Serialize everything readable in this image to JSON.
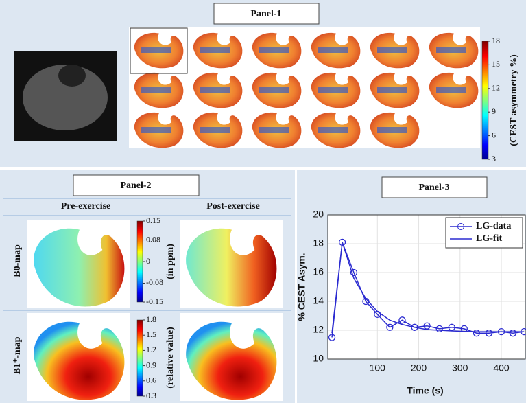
{
  "panel_1": {
    "title": "Panel-1",
    "colorbar": {
      "label": "(CEST asymmetry %)",
      "lim": [
        3,
        18
      ],
      "ticks": [
        3,
        6,
        9,
        12,
        15,
        18
      ]
    }
  },
  "panel_2": {
    "title": "Panel-2",
    "columns": [
      "Pre-exercise",
      "Post-exercise"
    ],
    "rows": [
      "B0-map",
      "B1⁺-map"
    ],
    "b0_colorbar": {
      "label": "(in ppm)",
      "lim": [
        -0.15,
        0.15
      ],
      "ticks": [
        -0.15,
        -0.08,
        0,
        0.08,
        0.15
      ]
    },
    "b1_colorbar": {
      "label": "(relative value)",
      "lim": [
        0.3,
        1.8
      ],
      "ticks": [
        0.3,
        0.6,
        0.9,
        1.2,
        1.5,
        1.8
      ]
    }
  },
  "chart_data": {
    "type": "line",
    "title": "Panel-3",
    "x_label": "Time (s)",
    "y_label": "% CEST Asym.",
    "x": [
      -10,
      15,
      43,
      72,
      100,
      130,
      160,
      190,
      220,
      250,
      280,
      310,
      340,
      370,
      400,
      428,
      455
    ],
    "series": [
      {
        "name": "LG-data",
        "color": "#2b2bd0",
        "markers": true,
        "values": [
          11.5,
          18.1,
          16.0,
          14.0,
          13.1,
          12.2,
          12.7,
          12.2,
          12.3,
          12.1,
          12.2,
          12.1,
          11.8,
          11.8,
          11.9,
          11.8,
          11.9
        ]
      },
      {
        "name": "LG-fit",
        "color": "#2b2bd0",
        "markers": false,
        "values": [
          11.8,
          18.1,
          15.6,
          14.2,
          13.3,
          12.7,
          12.4,
          12.2,
          12.05,
          12.0,
          11.95,
          11.92,
          11.9,
          11.9,
          11.9,
          11.9,
          11.9
        ]
      }
    ],
    "xlim": [
      -20,
      458
    ],
    "xticks": [
      100,
      200,
      300,
      400
    ],
    "ylim": [
      10,
      20
    ],
    "yticks": [
      10,
      12,
      14,
      16,
      18,
      20
    ],
    "grid": true,
    "legend": "top-right"
  }
}
